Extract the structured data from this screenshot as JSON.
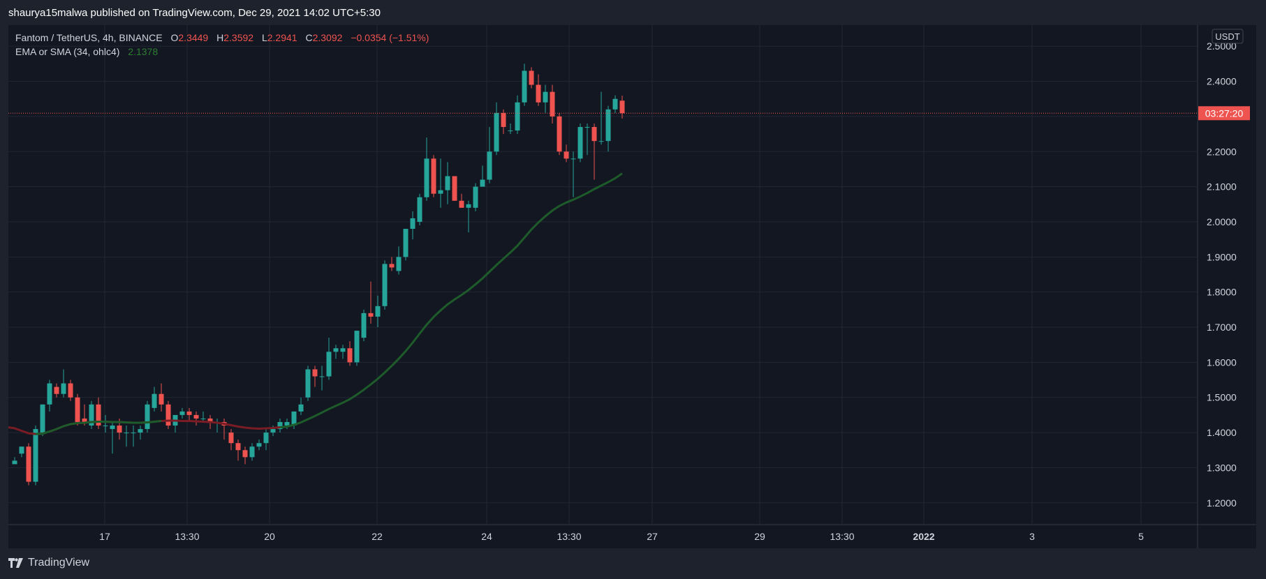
{
  "header": {
    "published": "shaurya15malwa published on TradingView.com, Dec 29, 2021 14:02 UTC+5:30"
  },
  "footer": {
    "brand": "TradingView"
  },
  "legend": {
    "symbol": "Fantom / TetherUS, 4h, BINANCE",
    "o_label": "O",
    "o_value": "2.3449",
    "h_label": "H",
    "h_value": "2.3592",
    "l_label": "L",
    "l_value": "2.2941",
    "c_label": "C",
    "c_value": "2.3092",
    "change": "−0.0354 (−1.51%)",
    "indicator": "EMA or SMA (34, ohlc4)",
    "indicator_value": "2.1378"
  },
  "price_axis": {
    "currency": "USDT",
    "countdown": "03:27:20"
  },
  "colors": {
    "up": "#26a69a",
    "down": "#ef5350",
    "ma_up": "#1e5b2a",
    "ma_down": "#7a1c24",
    "bg": "#131722",
    "grid": "#232733",
    "text": "#d1d4dc"
  },
  "chart_data": {
    "type": "candlestick",
    "title": "Fantom / TetherUS, 4h, BINANCE",
    "ylim": [
      1.14,
      2.56
    ],
    "y_ticks": [
      "1.2000",
      "1.3000",
      "1.4000",
      "1.5000",
      "1.6000",
      "1.7000",
      "1.8000",
      "1.9000",
      "2.0000",
      "2.1000",
      "2.2000",
      "2.3000",
      "2.4000",
      "2.5000"
    ],
    "x_ticks": [
      "17",
      "13:30",
      "20",
      "22",
      "24",
      "13:30",
      "27",
      "29",
      "13:30",
      "2022",
      "3",
      "5"
    ],
    "last_price": 2.3092,
    "candles": [
      [
        1.31,
        1.33,
        1.31,
        1.32
      ],
      [
        1.34,
        1.36,
        1.33,
        1.36
      ],
      [
        1.36,
        1.37,
        1.25,
        1.26
      ],
      [
        1.26,
        1.42,
        1.25,
        1.41
      ],
      [
        1.4,
        1.48,
        1.39,
        1.48
      ],
      [
        1.48,
        1.55,
        1.46,
        1.54
      ],
      [
        1.53,
        1.54,
        1.5,
        1.51
      ],
      [
        1.51,
        1.58,
        1.5,
        1.54
      ],
      [
        1.54,
        1.55,
        1.49,
        1.5
      ],
      [
        1.5,
        1.51,
        1.42,
        1.43
      ],
      [
        1.44,
        1.48,
        1.42,
        1.43
      ],
      [
        1.42,
        1.49,
        1.41,
        1.48
      ],
      [
        1.48,
        1.5,
        1.41,
        1.42
      ],
      [
        1.42,
        1.45,
        1.4,
        1.42
      ],
      [
        1.41,
        1.43,
        1.34,
        1.42
      ],
      [
        1.42,
        1.44,
        1.38,
        1.4
      ],
      [
        1.4,
        1.42,
        1.36,
        1.4
      ],
      [
        1.4,
        1.42,
        1.36,
        1.4
      ],
      [
        1.4,
        1.42,
        1.38,
        1.41
      ],
      [
        1.41,
        1.49,
        1.4,
        1.48
      ],
      [
        1.47,
        1.53,
        1.46,
        1.51
      ],
      [
        1.51,
        1.54,
        1.46,
        1.48
      ],
      [
        1.48,
        1.49,
        1.41,
        1.42
      ],
      [
        1.42,
        1.44,
        1.4,
        1.45
      ],
      [
        1.45,
        1.47,
        1.44,
        1.46
      ],
      [
        1.46,
        1.47,
        1.43,
        1.45
      ],
      [
        1.45,
        1.46,
        1.42,
        1.44
      ],
      [
        1.44,
        1.46,
        1.43,
        1.44
      ],
      [
        1.44,
        1.45,
        1.41,
        1.43
      ],
      [
        1.43,
        1.44,
        1.4,
        1.43
      ],
      [
        1.43,
        1.44,
        1.38,
        1.42
      ],
      [
        1.4,
        1.41,
        1.35,
        1.37
      ],
      [
        1.37,
        1.38,
        1.32,
        1.35
      ],
      [
        1.35,
        1.36,
        1.31,
        1.33
      ],
      [
        1.33,
        1.37,
        1.32,
        1.36
      ],
      [
        1.36,
        1.38,
        1.35,
        1.37
      ],
      [
        1.37,
        1.41,
        1.35,
        1.4
      ],
      [
        1.4,
        1.42,
        1.39,
        1.41
      ],
      [
        1.41,
        1.44,
        1.4,
        1.43
      ],
      [
        1.42,
        1.44,
        1.41,
        1.43
      ],
      [
        1.42,
        1.46,
        1.41,
        1.46
      ],
      [
        1.46,
        1.5,
        1.45,
        1.48
      ],
      [
        1.5,
        1.59,
        1.49,
        1.58
      ],
      [
        1.58,
        1.59,
        1.53,
        1.56
      ],
      [
        1.56,
        1.59,
        1.52,
        1.56
      ],
      [
        1.56,
        1.67,
        1.55,
        1.63
      ],
      [
        1.63,
        1.65,
        1.61,
        1.64
      ],
      [
        1.63,
        1.65,
        1.61,
        1.64
      ],
      [
        1.64,
        1.66,
        1.59,
        1.6
      ],
      [
        1.6,
        1.69,
        1.59,
        1.69
      ],
      [
        1.67,
        1.75,
        1.66,
        1.74
      ],
      [
        1.74,
        1.83,
        1.71,
        1.73
      ],
      [
        1.73,
        1.79,
        1.7,
        1.76
      ],
      [
        1.76,
        1.89,
        1.75,
        1.88
      ],
      [
        1.88,
        1.9,
        1.86,
        1.87
      ],
      [
        1.86,
        1.93,
        1.85,
        1.9
      ],
      [
        1.9,
        1.98,
        1.89,
        1.98
      ],
      [
        1.98,
        2.03,
        1.95,
        2.01
      ],
      [
        2.0,
        2.08,
        1.99,
        2.07
      ],
      [
        2.07,
        2.24,
        2.06,
        2.18
      ],
      [
        2.18,
        2.19,
        2.07,
        2.08
      ],
      [
        2.08,
        2.18,
        2.04,
        2.09
      ],
      [
        2.09,
        2.17,
        2.05,
        2.13
      ],
      [
        2.13,
        2.13,
        2.06,
        2.06
      ],
      [
        2.06,
        2.08,
        2.04,
        2.04
      ],
      [
        2.04,
        2.06,
        1.97,
        2.05
      ],
      [
        2.04,
        2.11,
        2.03,
        2.1
      ],
      [
        2.1,
        2.16,
        2.1,
        2.12
      ],
      [
        2.12,
        2.27,
        2.11,
        2.2
      ],
      [
        2.2,
        2.34,
        2.19,
        2.31
      ],
      [
        2.31,
        2.32,
        2.25,
        2.27
      ],
      [
        2.26,
        2.28,
        2.25,
        2.26
      ],
      [
        2.26,
        2.36,
        2.25,
        2.34
      ],
      [
        2.34,
        2.45,
        2.33,
        2.43
      ],
      [
        2.43,
        2.44,
        2.38,
        2.39
      ],
      [
        2.39,
        2.42,
        2.33,
        2.34
      ],
      [
        2.34,
        2.39,
        2.31,
        2.37
      ],
      [
        2.37,
        2.39,
        2.28,
        2.3
      ],
      [
        2.3,
        2.31,
        2.19,
        2.2
      ],
      [
        2.2,
        2.22,
        2.17,
        2.18
      ],
      [
        2.18,
        2.2,
        2.07,
        2.18
      ],
      [
        2.18,
        2.28,
        2.17,
        2.27
      ],
      [
        2.27,
        2.28,
        2.19,
        2.27
      ],
      [
        2.27,
        2.28,
        2.12,
        2.23
      ],
      [
        2.23,
        2.37,
        2.22,
        2.23
      ],
      [
        2.23,
        2.33,
        2.2,
        2.32
      ],
      [
        2.32,
        2.36,
        2.31,
        2.35
      ],
      [
        2.3449,
        2.3592,
        2.2941,
        2.3092
      ]
    ],
    "ma": [
      1.412,
      1.405,
      1.398,
      1.396,
      1.397,
      1.403,
      1.41,
      1.418,
      1.424,
      1.427,
      1.428,
      1.43,
      1.431,
      1.431,
      1.43,
      1.43,
      1.429,
      1.428,
      1.428,
      1.429,
      1.431,
      1.433,
      1.434,
      1.434,
      1.433,
      1.433,
      1.432,
      1.431,
      1.43,
      1.428,
      1.425,
      1.421,
      1.417,
      1.414,
      1.412,
      1.411,
      1.412,
      1.413,
      1.415,
      1.417,
      1.422,
      1.429,
      1.438,
      1.447,
      1.457,
      1.467,
      1.476,
      1.485,
      1.495,
      1.508,
      1.522,
      1.537,
      1.553,
      1.571,
      1.59,
      1.61,
      1.632,
      1.656,
      1.682,
      1.707,
      1.729,
      1.748,
      1.765,
      1.779,
      1.792,
      1.806,
      1.822,
      1.839,
      1.858,
      1.877,
      1.895,
      1.913,
      1.932,
      1.955,
      1.978,
      1.998,
      2.016,
      2.032,
      2.045,
      2.055,
      2.063,
      2.072,
      2.082,
      2.093,
      2.103,
      2.113,
      2.124,
      2.1378
    ],
    "ma_color_change_index": 38
  }
}
